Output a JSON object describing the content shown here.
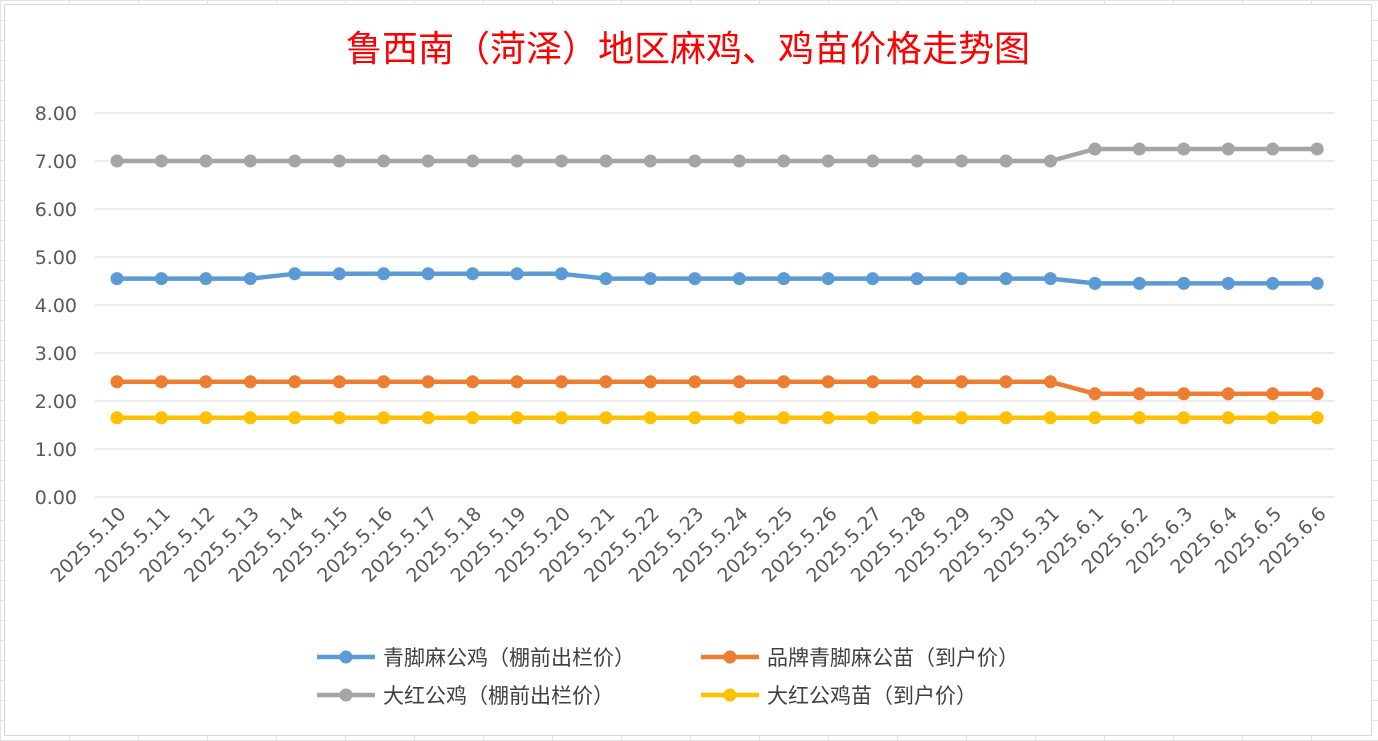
{
  "chart_data": {
    "type": "line",
    "title": "鲁西南（菏泽）地区麻鸡、鸡苗价格走势图",
    "xlabel": "",
    "ylabel": "",
    "ylim": [
      0,
      8
    ],
    "yticks": [
      "0.00",
      "1.00",
      "2.00",
      "3.00",
      "4.00",
      "5.00",
      "6.00",
      "7.00",
      "8.00"
    ],
    "grid": true,
    "legend_position": "bottom",
    "categories": [
      "2025.5.10",
      "2025.5.11",
      "2025.5.12",
      "2025.5.13",
      "2025.5.14",
      "2025.5.15",
      "2025.5.16",
      "2025.5.17",
      "2025.5.18",
      "2025.5.19",
      "2025.5.20",
      "2025.5.21",
      "2025.5.22",
      "2025.5.23",
      "2025.5.24",
      "2025.5.25",
      "2025.5.26",
      "2025.5.27",
      "2025.5.28",
      "2025.5.29",
      "2025.5.30",
      "2025.5.31",
      "2025.6.1",
      "2025.6.2",
      "2025.6.3",
      "2025.6.4",
      "2025.6.5",
      "2025.6.6"
    ],
    "series": [
      {
        "name": "青脚麻公鸡（棚前出栏价）",
        "color": "#5b9bd5",
        "values": [
          4.55,
          4.55,
          4.55,
          4.55,
          4.65,
          4.65,
          4.65,
          4.65,
          4.65,
          4.65,
          4.65,
          4.55,
          4.55,
          4.55,
          4.55,
          4.55,
          4.55,
          4.55,
          4.55,
          4.55,
          4.55,
          4.55,
          4.45,
          4.45,
          4.45,
          4.45,
          4.45,
          4.45
        ]
      },
      {
        "name": "品牌青脚麻公苗（到户价）",
        "color": "#ed7d31",
        "values": [
          2.4,
          2.4,
          2.4,
          2.4,
          2.4,
          2.4,
          2.4,
          2.4,
          2.4,
          2.4,
          2.4,
          2.4,
          2.4,
          2.4,
          2.4,
          2.4,
          2.4,
          2.4,
          2.4,
          2.4,
          2.4,
          2.4,
          2.15,
          2.15,
          2.15,
          2.15,
          2.15,
          2.15
        ]
      },
      {
        "name": "大红公鸡（棚前出栏价）",
        "color": "#a5a5a5",
        "values": [
          7.0,
          7.0,
          7.0,
          7.0,
          7.0,
          7.0,
          7.0,
          7.0,
          7.0,
          7.0,
          7.0,
          7.0,
          7.0,
          7.0,
          7.0,
          7.0,
          7.0,
          7.0,
          7.0,
          7.0,
          7.0,
          7.0,
          7.25,
          7.25,
          7.25,
          7.25,
          7.25,
          7.25
        ]
      },
      {
        "name": "大红公鸡苗（到户价）",
        "color": "#ffc000",
        "values": [
          1.65,
          1.65,
          1.65,
          1.65,
          1.65,
          1.65,
          1.65,
          1.65,
          1.65,
          1.65,
          1.65,
          1.65,
          1.65,
          1.65,
          1.65,
          1.65,
          1.65,
          1.65,
          1.65,
          1.65,
          1.65,
          1.65,
          1.65,
          1.65,
          1.65,
          1.65,
          1.65,
          1.65
        ]
      }
    ]
  }
}
